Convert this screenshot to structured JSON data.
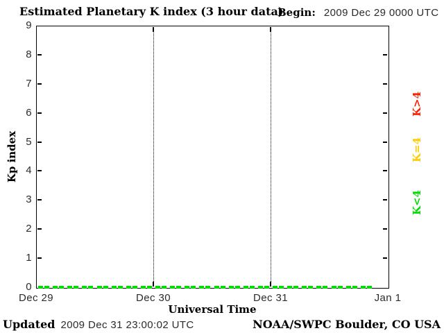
{
  "header": {
    "begin_label": "Begin:",
    "begin_value": "2009 Dec 29 0000 UTC"
  },
  "footer": {
    "updated_label": "Updated",
    "updated_value": "2009 Dec 31 23:00:02 UTC",
    "source": "NOAA/SWPC Boulder, CO USA"
  },
  "chart_data": {
    "type": "bar",
    "title": "Estimated Planetary K index (3 hour data)",
    "xlabel": "Universal Time",
    "ylabel": "Kp index",
    "ylim": [
      0,
      9
    ],
    "yticks": [
      0,
      1,
      2,
      3,
      4,
      5,
      6,
      7,
      8,
      9
    ],
    "x_tick_labels": [
      "Dec 29",
      "Dec 30",
      "Dec 31",
      "Jan 1"
    ],
    "bar_interval_hours": 3,
    "bars_per_day": 8,
    "grid": "vertical dotted lines at day boundaries",
    "legend_position": "right outside, rotated 90deg",
    "legend": [
      {
        "label": "K>4",
        "color": "#ff2000"
      },
      {
        "label": "K=4",
        "color": "#ffcc00"
      },
      {
        "label": "K<4",
        "color": "#00dd00"
      }
    ],
    "values": [
      0,
      0,
      0,
      0,
      0,
      0,
      0,
      0,
      0,
      0,
      0,
      0,
      0,
      0,
      0,
      0,
      0,
      0,
      0,
      0,
      0,
      0,
      0
    ]
  }
}
